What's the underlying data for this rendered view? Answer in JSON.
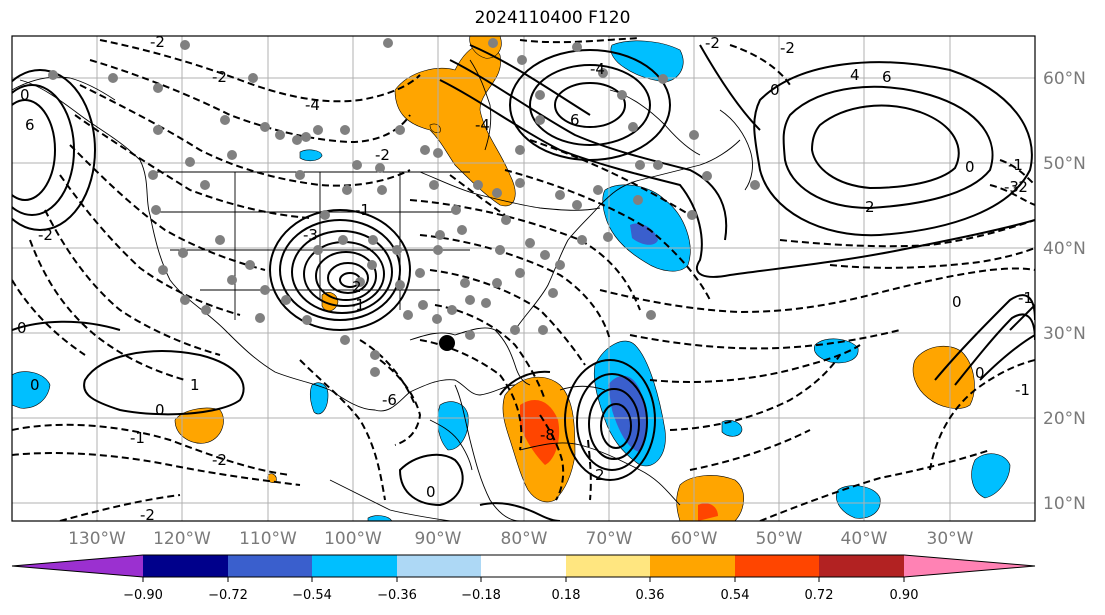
{
  "title": "2024110400 F120",
  "lat_labels": [
    "60°N",
    "50°N",
    "40°N",
    "30°N",
    "20°N",
    "10°N"
  ],
  "lon_labels": [
    "130°W",
    "120°W",
    "110°W",
    "100°W",
    "90°W",
    "80°W",
    "70°W",
    "60°W",
    "50°W",
    "40°W",
    "30°W"
  ],
  "colorbar": {
    "tick_labels": [
      "−0.90",
      "−0.72",
      "−0.54",
      "−0.36",
      "−0.18",
      "0.18",
      "0.36",
      "0.54",
      "0.72",
      "0.90"
    ],
    "colors": [
      "#9b30d0",
      "#00008b",
      "#3a5fcd",
      "#00bfff",
      "#add8f5",
      "#ffffff",
      "#ffe680",
      "#ffa500",
      "#ff4500",
      "#b22222",
      "#ff82b4"
    ]
  },
  "contour_labels": [
    "-2",
    "-4",
    "6",
    "-2",
    "-4",
    "-2",
    "-2",
    "0",
    "4",
    "6",
    "6",
    "-4",
    "-2",
    "0",
    "-1",
    "-2",
    "2",
    "-2",
    "-3",
    "-1",
    "0",
    "0",
    "-1",
    "0",
    "1",
    "0",
    "-1",
    "-2",
    "-6",
    "-8",
    "0",
    "2",
    "2",
    "-1",
    "-3",
    "-2",
    "-1",
    "0",
    "0"
  ]
}
